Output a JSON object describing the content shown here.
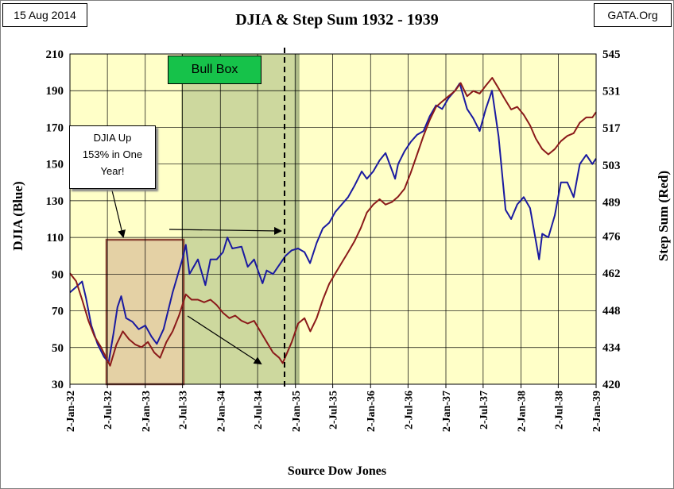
{
  "header": {
    "date": "15 Aug 2014",
    "source": "GATA.Org"
  },
  "chart_data": {
    "type": "line",
    "title": "DJIA & Step Sum 1932 - 1939",
    "xlabel": "Source Dow Jones",
    "ylabel_left": "DJIA  (Blue)",
    "ylabel_right": "Step Sum  (Red)",
    "xlim": [
      "1932-01-02",
      "1939-01-02"
    ],
    "ylim_left": [
      30,
      210
    ],
    "ylim_right": [
      420,
      545
    ],
    "left_ticks": [
      30,
      50,
      70,
      90,
      110,
      130,
      150,
      170,
      190,
      210
    ],
    "right_ticks": [
      420,
      434,
      448,
      462,
      476,
      489,
      503,
      517,
      531,
      545
    ],
    "x_tick_labels": [
      "2-Jan-32",
      "2-Jul-32",
      "2-Jan-33",
      "2-Jul-33",
      "2-Jan-34",
      "2-Jul-34",
      "2-Jan-35",
      "2-Jul-35",
      "2-Jan-36",
      "2-Jul-36",
      "2-Jan-37",
      "2-Jul-37",
      "2-Jan-38",
      "2-Jul-38",
      "2-Jan-39"
    ],
    "grid": true,
    "plot_background": "#ffffc8",
    "series": [
      {
        "name": "DJIA",
        "axis": "left",
        "color": "#1a1aa0",
        "points": [
          [
            "1932-01-02",
            80
          ],
          [
            "1932-02-01",
            83
          ],
          [
            "1932-03-01",
            86
          ],
          [
            "1932-03-20",
            77
          ],
          [
            "1932-04-15",
            62
          ],
          [
            "1932-05-15",
            52
          ],
          [
            "1932-06-15",
            45
          ],
          [
            "1932-07-08",
            42
          ],
          [
            "1932-08-01",
            58
          ],
          [
            "1932-08-20",
            72
          ],
          [
            "1932-09-07",
            78
          ],
          [
            "1932-10-01",
            66
          ],
          [
            "1932-11-01",
            64
          ],
          [
            "1932-12-01",
            60
          ],
          [
            "1933-01-02",
            62
          ],
          [
            "1933-02-01",
            56
          ],
          [
            "1933-02-27",
            52
          ],
          [
            "1933-04-01",
            60
          ],
          [
            "1933-05-15",
            80
          ],
          [
            "1933-07-01",
            98
          ],
          [
            "1933-07-18",
            106
          ],
          [
            "1933-08-05",
            90
          ],
          [
            "1933-09-15",
            98
          ],
          [
            "1933-10-21",
            84
          ],
          [
            "1933-11-15",
            98
          ],
          [
            "1933-12-15",
            98
          ],
          [
            "1934-01-15",
            102
          ],
          [
            "1934-02-05",
            110
          ],
          [
            "1934-03-01",
            104
          ],
          [
            "1934-04-15",
            105
          ],
          [
            "1934-05-15",
            94
          ],
          [
            "1934-06-15",
            98
          ],
          [
            "1934-07-26",
            85
          ],
          [
            "1934-08-15",
            92
          ],
          [
            "1934-09-15",
            90
          ],
          [
            "1934-10-15",
            95
          ],
          [
            "1934-11-15",
            100
          ],
          [
            "1934-12-15",
            103
          ],
          [
            "1935-01-15",
            104
          ],
          [
            "1935-02-15",
            102
          ],
          [
            "1935-03-14",
            96
          ],
          [
            "1935-04-15",
            107
          ],
          [
            "1935-05-15",
            115
          ],
          [
            "1935-06-15",
            118
          ],
          [
            "1935-07-15",
            124
          ],
          [
            "1935-08-15",
            128
          ],
          [
            "1935-09-15",
            132
          ],
          [
            "1935-10-15",
            138
          ],
          [
            "1935-11-20",
            146
          ],
          [
            "1935-12-15",
            142
          ],
          [
            "1936-01-15",
            146
          ],
          [
            "1936-02-15",
            152
          ],
          [
            "1936-03-15",
            156
          ],
          [
            "1936-04-30",
            142
          ],
          [
            "1936-05-15",
            150
          ],
          [
            "1936-06-15",
            157
          ],
          [
            "1936-07-15",
            162
          ],
          [
            "1936-08-15",
            166
          ],
          [
            "1936-09-15",
            168
          ],
          [
            "1936-10-15",
            176
          ],
          [
            "1936-11-15",
            182
          ],
          [
            "1936-12-15",
            180
          ],
          [
            "1937-01-15",
            186
          ],
          [
            "1937-02-15",
            190
          ],
          [
            "1937-03-10",
            194
          ],
          [
            "1937-04-15",
            180
          ],
          [
            "1937-05-15",
            175
          ],
          [
            "1937-06-15",
            168
          ],
          [
            "1937-07-15",
            180
          ],
          [
            "1937-08-14",
            190
          ],
          [
            "1937-09-15",
            165
          ],
          [
            "1937-10-19",
            125
          ],
          [
            "1937-11-15",
            120
          ],
          [
            "1937-12-15",
            128
          ],
          [
            "1938-01-15",
            132
          ],
          [
            "1938-02-15",
            126
          ],
          [
            "1938-03-31",
            98
          ],
          [
            "1938-04-15",
            112
          ],
          [
            "1938-05-15",
            110
          ],
          [
            "1938-06-15",
            122
          ],
          [
            "1938-07-15",
            140
          ],
          [
            "1938-08-15",
            140
          ],
          [
            "1938-09-15",
            132
          ],
          [
            "1938-10-15",
            150
          ],
          [
            "1938-11-15",
            155
          ],
          [
            "1938-12-15",
            150
          ],
          [
            "1939-01-02",
            153
          ]
        ]
      },
      {
        "name": "Step Sum",
        "axis": "right",
        "color": "#8b1a1a",
        "points": [
          [
            "1932-01-02",
            462
          ],
          [
            "1932-02-01",
            459
          ],
          [
            "1932-03-01",
            452
          ],
          [
            "1932-04-01",
            444
          ],
          [
            "1932-05-01",
            438
          ],
          [
            "1932-06-01",
            434
          ],
          [
            "1932-07-15",
            427
          ],
          [
            "1932-08-15",
            435
          ],
          [
            "1932-09-15",
            440
          ],
          [
            "1932-10-15",
            437
          ],
          [
            "1932-11-15",
            435
          ],
          [
            "1932-12-15",
            434
          ],
          [
            "1933-01-15",
            436
          ],
          [
            "1933-02-15",
            432
          ],
          [
            "1933-03-15",
            430
          ],
          [
            "1933-04-15",
            436
          ],
          [
            "1933-05-15",
            440
          ],
          [
            "1933-06-15",
            446
          ],
          [
            "1933-07-18",
            454
          ],
          [
            "1933-08-15",
            452
          ],
          [
            "1933-09-15",
            452
          ],
          [
            "1933-10-15",
            451
          ],
          [
            "1933-11-15",
            452
          ],
          [
            "1933-12-15",
            450
          ],
          [
            "1934-01-15",
            447
          ],
          [
            "1934-02-15",
            445
          ],
          [
            "1934-03-15",
            446
          ],
          [
            "1934-04-15",
            444
          ],
          [
            "1934-05-15",
            443
          ],
          [
            "1934-06-15",
            444
          ],
          [
            "1934-07-15",
            440
          ],
          [
            "1934-08-15",
            436
          ],
          [
            "1934-09-15",
            432
          ],
          [
            "1934-10-15",
            430
          ],
          [
            "1934-11-01",
            428
          ],
          [
            "1934-12-15",
            436
          ],
          [
            "1935-01-15",
            443
          ],
          [
            "1935-02-15",
            445
          ],
          [
            "1935-03-15",
            440
          ],
          [
            "1935-04-15",
            445
          ],
          [
            "1935-05-15",
            452
          ],
          [
            "1935-06-15",
            458
          ],
          [
            "1935-07-15",
            462
          ],
          [
            "1935-08-15",
            466
          ],
          [
            "1935-09-15",
            470
          ],
          [
            "1935-10-15",
            474
          ],
          [
            "1935-11-15",
            479
          ],
          [
            "1935-12-15",
            485
          ],
          [
            "1936-01-15",
            488
          ],
          [
            "1936-02-15",
            490
          ],
          [
            "1936-03-15",
            488
          ],
          [
            "1936-04-15",
            489
          ],
          [
            "1936-05-15",
            491
          ],
          [
            "1936-06-15",
            494
          ],
          [
            "1936-07-15",
            500
          ],
          [
            "1936-08-15",
            507
          ],
          [
            "1936-09-15",
            514
          ],
          [
            "1936-10-15",
            520
          ],
          [
            "1936-11-15",
            525
          ],
          [
            "1936-12-15",
            527
          ],
          [
            "1937-01-15",
            529
          ],
          [
            "1937-02-15",
            531
          ],
          [
            "1937-03-15",
            534
          ],
          [
            "1937-04-15",
            529
          ],
          [
            "1937-05-15",
            531
          ],
          [
            "1937-06-15",
            530
          ],
          [
            "1937-07-15",
            533
          ],
          [
            "1937-08-15",
            536
          ],
          [
            "1937-09-15",
            532
          ],
          [
            "1937-10-15",
            528
          ],
          [
            "1937-11-15",
            524
          ],
          [
            "1937-12-15",
            525
          ],
          [
            "1938-01-15",
            522
          ],
          [
            "1938-02-15",
            518
          ],
          [
            "1938-03-15",
            513
          ],
          [
            "1938-04-15",
            509
          ],
          [
            "1938-05-15",
            507
          ],
          [
            "1938-06-15",
            509
          ],
          [
            "1938-07-15",
            512
          ],
          [
            "1938-08-15",
            514
          ],
          [
            "1938-09-15",
            515
          ],
          [
            "1938-10-15",
            519
          ],
          [
            "1938-11-15",
            521
          ],
          [
            "1938-12-15",
            521
          ],
          [
            "1939-01-02",
            523
          ]
        ]
      }
    ]
  },
  "annotations": {
    "djia_up": [
      "DJIA Up",
      "153% in One",
      "Year!"
    ],
    "bull_box": "Bull Box"
  }
}
